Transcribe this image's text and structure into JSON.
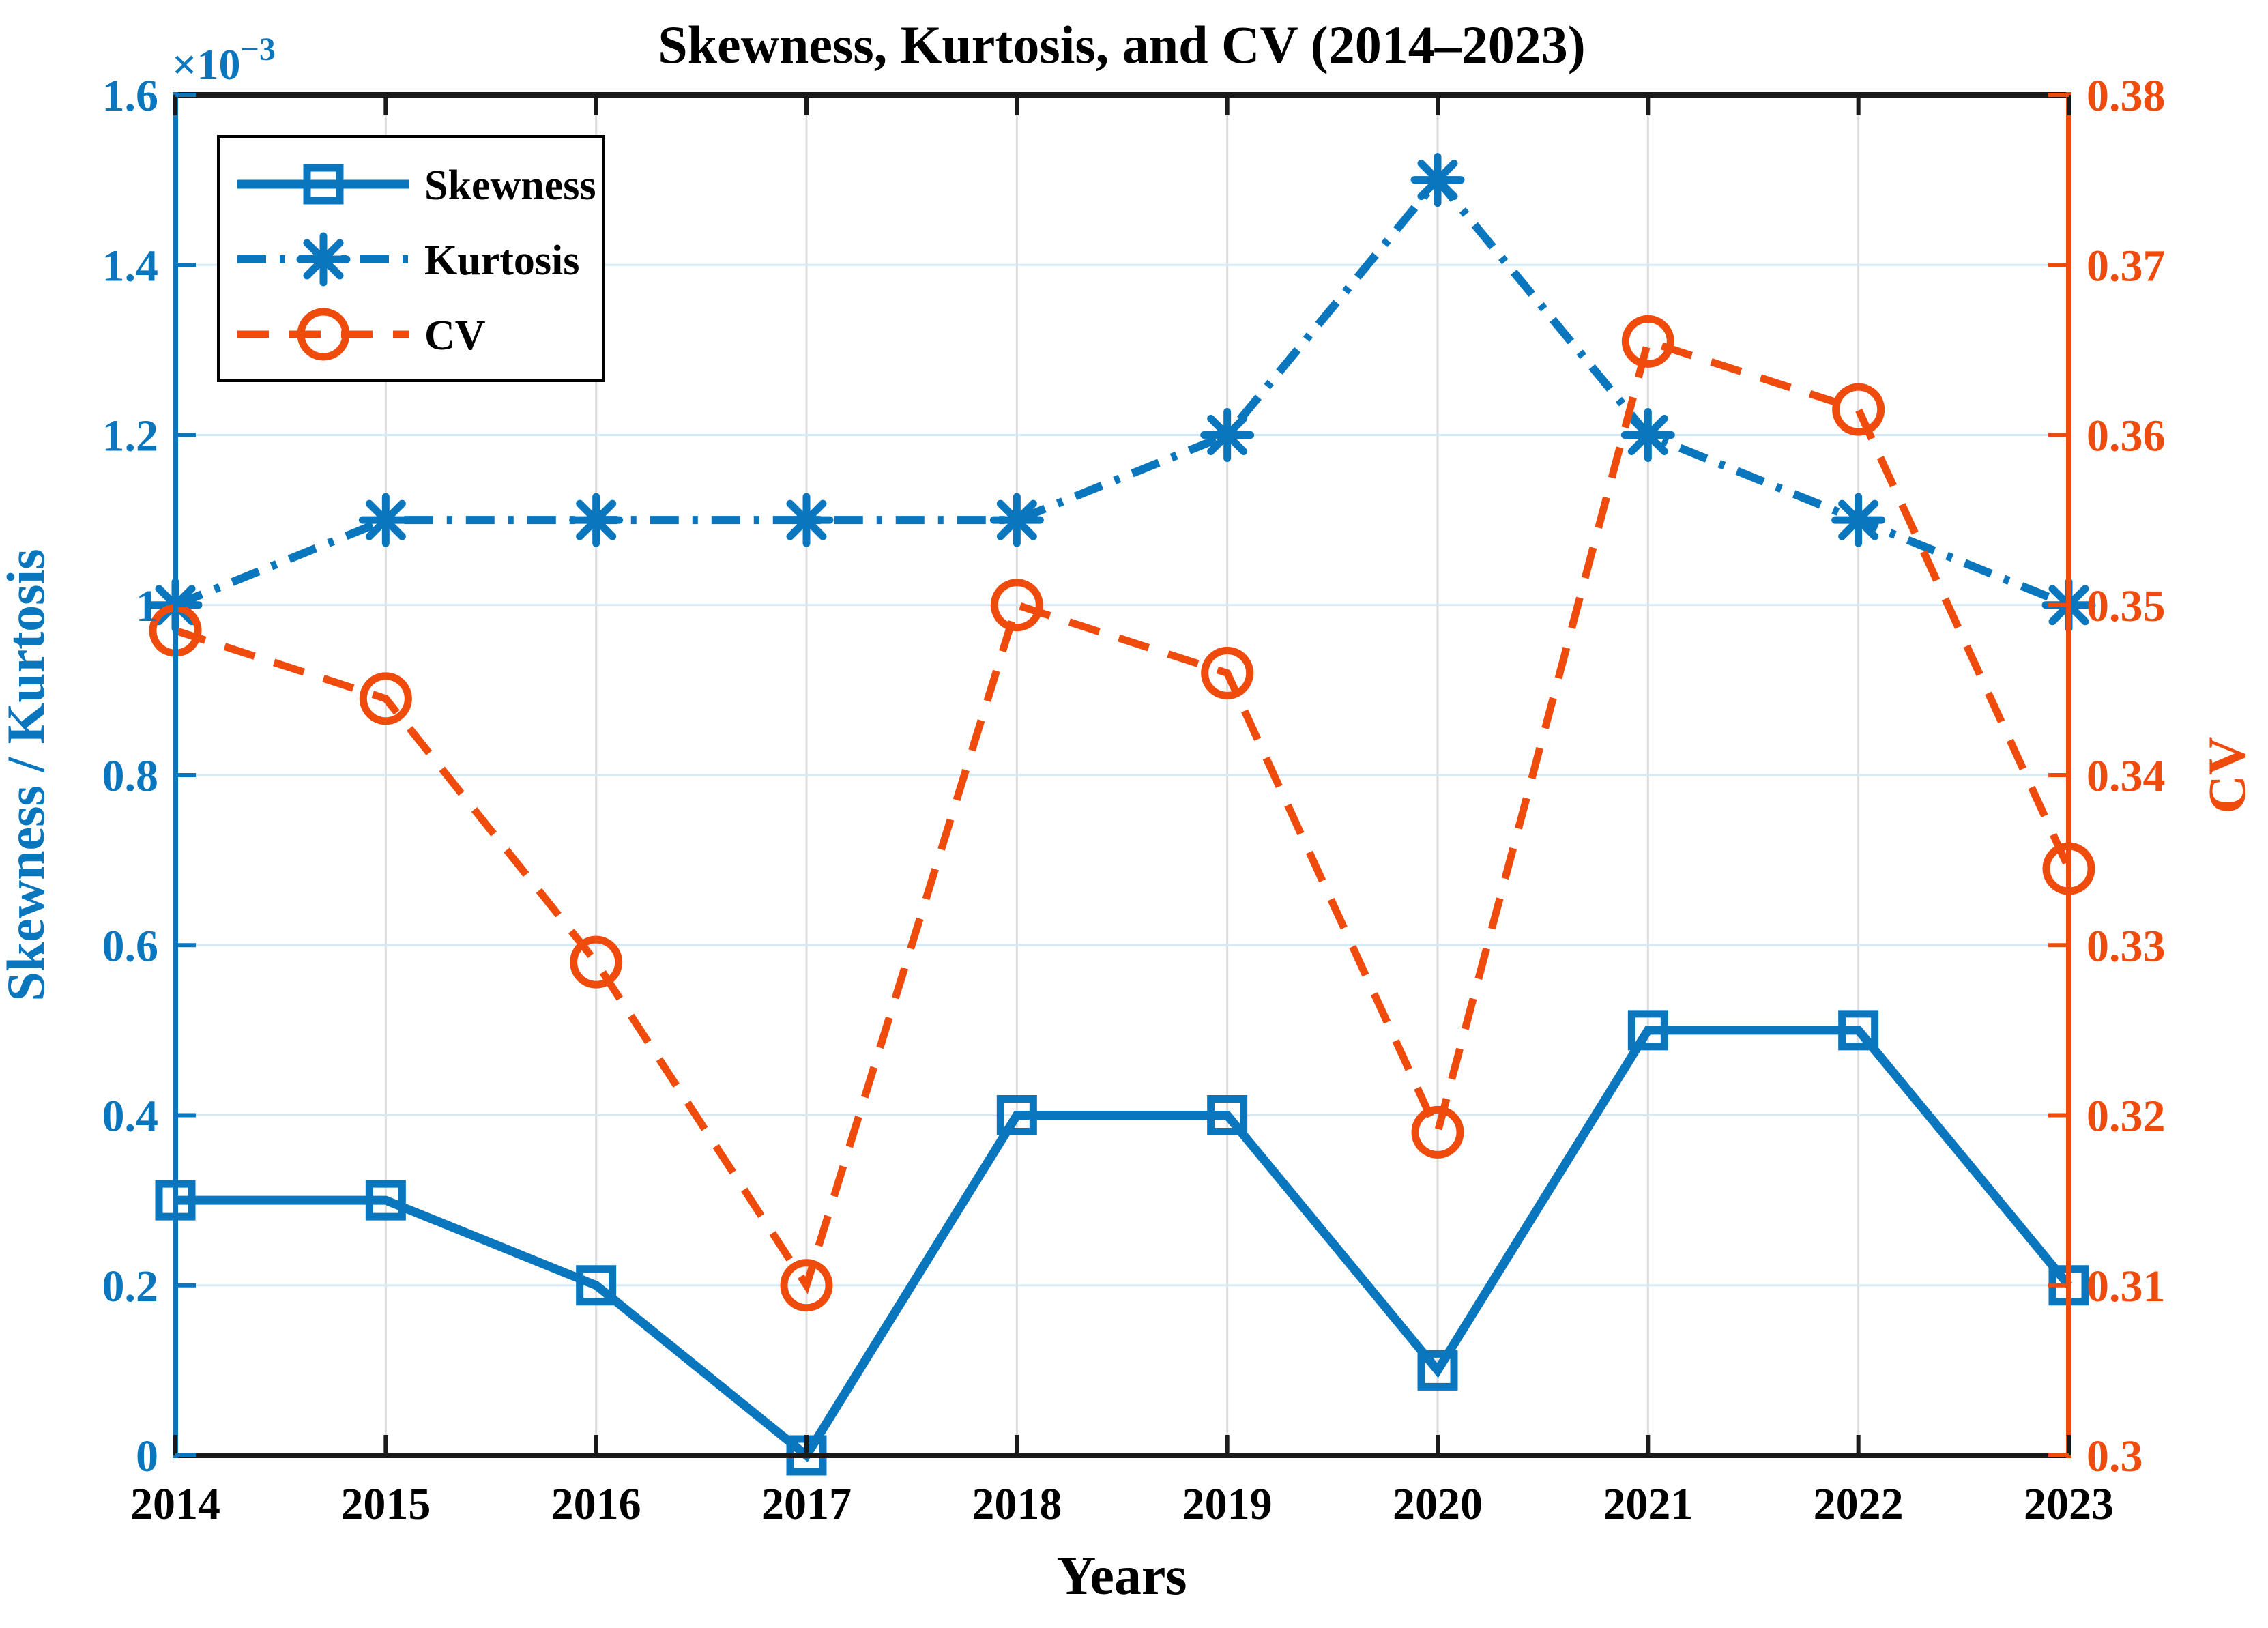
{
  "title": "Skewness, Kurtosis, and CV (2014–2023)",
  "axes": {
    "x": {
      "label": "Years",
      "ticks": [
        "2014",
        "2015",
        "2016",
        "2017",
        "2018",
        "2019",
        "2020",
        "2021",
        "2022",
        "2023"
      ],
      "color": "#000000"
    },
    "y_left": {
      "label": "Skewness / Kurtosis",
      "offset": {
        "base": "×10",
        "exponent": "−3"
      },
      "ticks": [
        "0",
        "0.2",
        "0.4",
        "0.6",
        "0.8",
        "1",
        "1.2",
        "1.4",
        "1.6"
      ],
      "min": 0,
      "max": 1.6,
      "color": "#0A76BD"
    },
    "y_right": {
      "label": "CV",
      "ticks": [
        "0.3",
        "0.31",
        "0.32",
        "0.33",
        "0.34",
        "0.35",
        "0.36",
        "0.37",
        "0.38"
      ],
      "min": 0.3,
      "max": 0.38,
      "color": "#EE4B0D"
    }
  },
  "legend": [
    {
      "label": "Skewness"
    },
    {
      "label": "Kurtosis"
    },
    {
      "label": "CV"
    }
  ],
  "colors": {
    "blue": "#0A76BD",
    "orange": "#EE4B0D",
    "grid_horizontal": "#D4EAF7",
    "grid_vertical": "#DCDCDC",
    "axis_black": "#1A1A1A",
    "background": "#FFFFFF"
  },
  "chart_data": {
    "type": "line",
    "title": "Skewness, Kurtosis, and CV (2014–2023)",
    "xlabel": "Years",
    "ylabel_left": "Skewness / Kurtosis",
    "ylabel_right": "CV",
    "x": [
      2014,
      2015,
      2016,
      2017,
      2018,
      2019,
      2020,
      2021,
      2022,
      2023
    ],
    "left_axis_scale_note": "left-axis values are in units of 1e-3 (×10⁻³ offset shown on axis)",
    "ylim_left": [
      0,
      1.6
    ],
    "ylim_right": [
      0.3,
      0.38
    ],
    "grid": true,
    "legend_position": "top-left-inside",
    "series": [
      {
        "name": "Skewness",
        "axis": "left",
        "values": [
          0.3,
          0.3,
          0.2,
          0.0,
          0.4,
          0.4,
          0.1,
          0.5,
          0.5,
          0.2
        ],
        "color": "#0A76BD",
        "line_style": "solid",
        "marker": "square"
      },
      {
        "name": "Kurtosis",
        "axis": "left",
        "values": [
          1.0,
          1.1,
          1.1,
          1.1,
          1.1,
          1.2,
          1.5,
          1.2,
          1.1,
          1.0
        ],
        "color": "#0A76BD",
        "line_style": "dash-dot",
        "marker": "asterisk"
      },
      {
        "name": "CV",
        "axis": "right",
        "values": [
          0.3485,
          0.3445,
          0.329,
          0.31,
          0.35,
          0.346,
          0.319,
          0.3655,
          0.3615,
          0.3345
        ],
        "color": "#EE4B0D",
        "line_style": "dashed",
        "marker": "circle"
      }
    ]
  }
}
